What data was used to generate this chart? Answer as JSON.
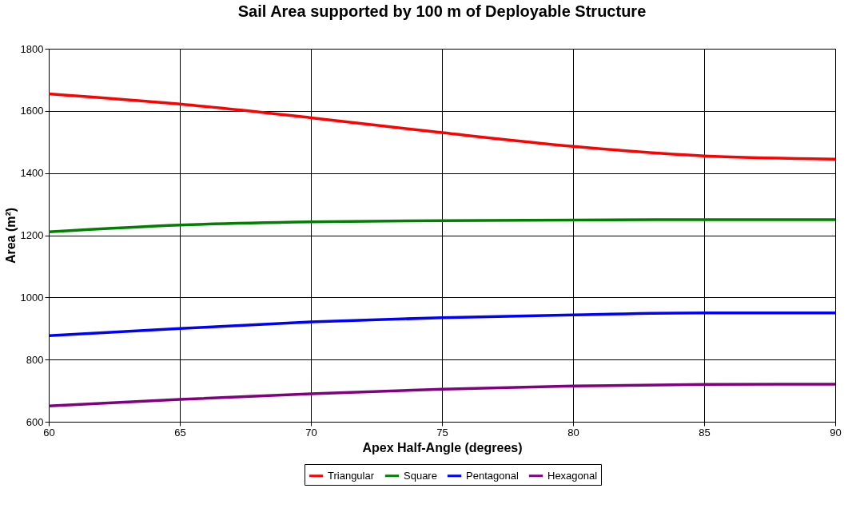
{
  "chart_data": {
    "type": "line",
    "title": "Sail Area supported by 100 m of Deployable Structure",
    "xlabel": "Apex Half-Angle (degrees)",
    "ylabel": "Area (m²)",
    "x": [
      60,
      65,
      70,
      75,
      80,
      85,
      90
    ],
    "series": [
      {
        "name": "Triangular",
        "color": "#ff0000",
        "values": [
          1655,
          1622,
          1578,
          1530,
          1486,
          1455,
          1445
        ]
      },
      {
        "name": "Square",
        "color": "#008000",
        "values": [
          1211,
          1233,
          1243,
          1247,
          1249,
          1250,
          1250
        ]
      },
      {
        "name": "Pentagonal",
        "color": "#0000ff",
        "values": [
          877,
          900,
          921,
          935,
          944,
          950,
          950
        ]
      },
      {
        "name": "Hexagonal",
        "color": "#800080",
        "values": [
          651,
          672,
          690,
          705,
          715,
          720,
          721
        ]
      }
    ],
    "xlim": [
      60,
      90
    ],
    "xticks": [
      60,
      65,
      70,
      75,
      80,
      85,
      90
    ],
    "ylim": [
      600,
      1800
    ],
    "yticks": [
      600,
      800,
      1000,
      1200,
      1400,
      1600,
      1800
    ],
    "grid": true,
    "legend": "bottom",
    "marker": "none",
    "line_style": "solid"
  }
}
